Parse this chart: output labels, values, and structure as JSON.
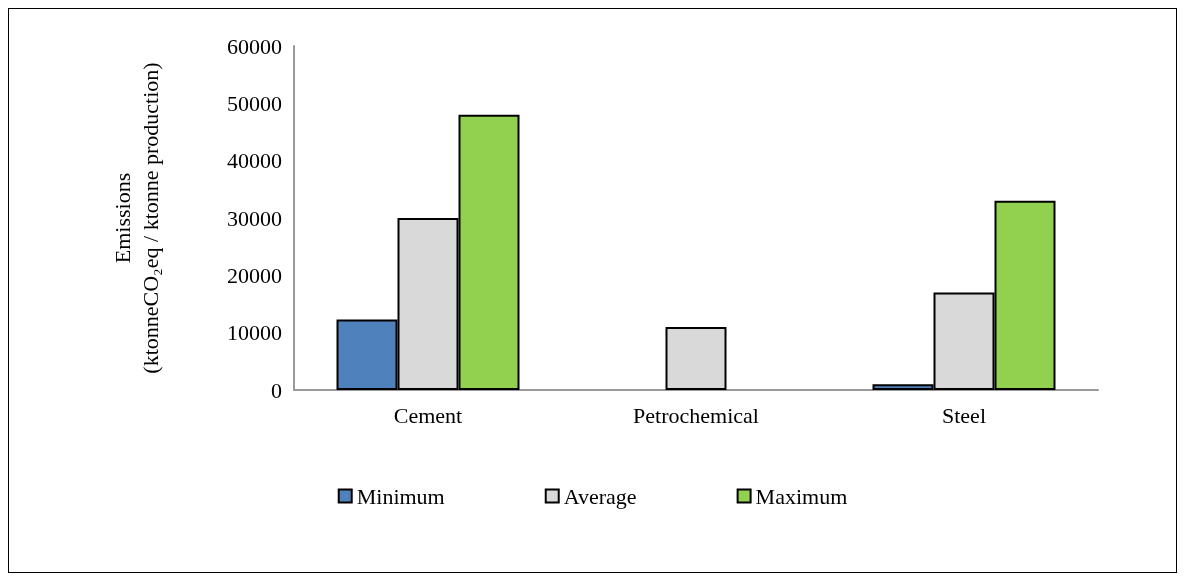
{
  "chart_data": {
    "type": "bar",
    "ylabel": "Emissions\n(ktonneCO₂eq / ktonne production)",
    "categories": [
      "Cement",
      "Petrochemical",
      "Steel"
    ],
    "series": [
      {
        "name": "Minimum",
        "color": "#4f81bd",
        "values": [
          12300,
          null,
          1000
        ]
      },
      {
        "name": "Average",
        "color": "#d9d9d9",
        "values": [
          30000,
          11000,
          17000
        ]
      },
      {
        "name": "Maximum",
        "color": "#92d050",
        "values": [
          48000,
          null,
          33000
        ]
      }
    ],
    "ylim": [
      0,
      60000
    ],
    "yticks": [
      0,
      10000,
      20000,
      30000,
      40000,
      50000,
      60000
    ],
    "grid": false,
    "legend": "bottom"
  }
}
